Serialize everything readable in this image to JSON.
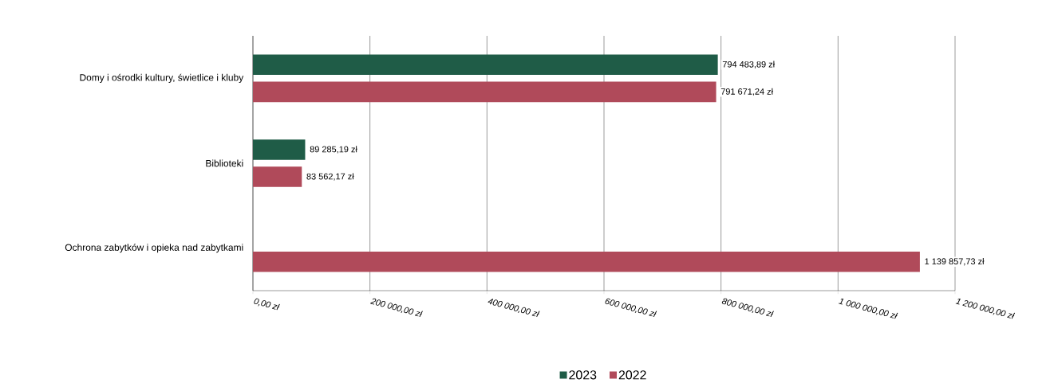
{
  "chart_data": {
    "type": "bar",
    "orientation": "horizontal",
    "categories": [
      "Domy i ośrodki kultury, świetlice i kluby",
      "Biblioteki",
      "Ochrona zabytków i opieka nad zabytkami"
    ],
    "series": [
      {
        "name": "2023",
        "color": "#1f5c47",
        "values": [
          794483.89,
          89285.19,
          null
        ],
        "value_labels": [
          "794 483,89 zł",
          "89 285,19 zł",
          null
        ]
      },
      {
        "name": "2022",
        "color": "#b04a5a",
        "values": [
          791671.24,
          83562.17,
          1139857.73
        ],
        "value_labels": [
          "791 671,24 zł",
          "83 562,17 zł",
          "1 139 857,73 zł"
        ]
      }
    ],
    "xlim": [
      0,
      1200000
    ],
    "xticks": [
      {
        "value": 0,
        "label": "0,00 zł"
      },
      {
        "value": 200000,
        "label": "200 000,00 zł"
      },
      {
        "value": 400000,
        "label": "400 000,00 zł"
      },
      {
        "value": 600000,
        "label": "600 000,00 zł"
      },
      {
        "value": 800000,
        "label": "800 000,00 zł"
      },
      {
        "value": 1000000,
        "label": "1 000 000,00 zł"
      },
      {
        "value": 1200000,
        "label": "1 200 000,00 zł"
      }
    ],
    "grid": "x",
    "legend": "bottom"
  }
}
